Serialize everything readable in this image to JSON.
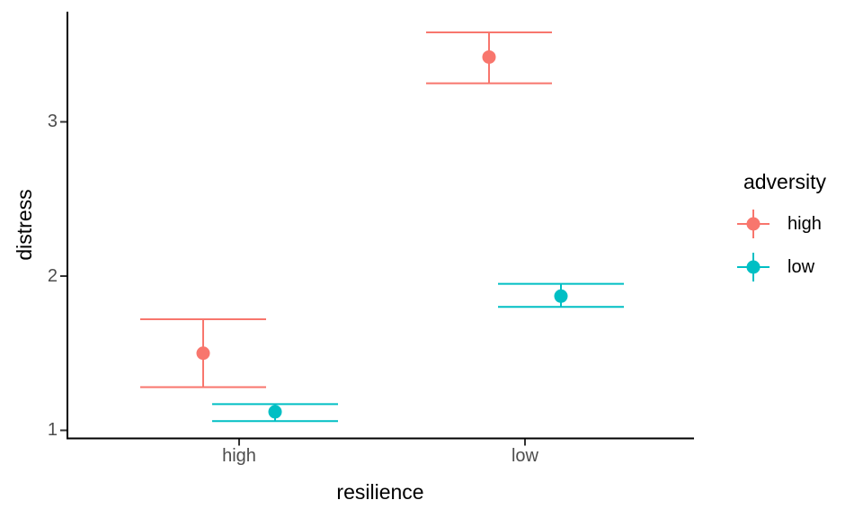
{
  "page": {
    "background": "#ffffff"
  },
  "chart_data": {
    "type": "scatter",
    "variant": "group-means-with-error-bars-dodged",
    "title": "",
    "xlabel": "resilience",
    "ylabel": "distress",
    "x_categories": [
      "high",
      "low"
    ],
    "y_ticks": [
      1,
      2,
      3
    ],
    "y_panel_range": [
      0.94,
      3.71
    ],
    "grid": false,
    "theme": "classic",
    "legend": {
      "title": "adversity",
      "position": "right",
      "entries": [
        {
          "label": "high",
          "color": "#F8766D"
        },
        {
          "label": "low",
          "color": "#00BFC4"
        }
      ]
    },
    "series": [
      {
        "name": "high",
        "color": "#F8766D",
        "points": [
          {
            "x": "high",
            "mean": 1.5,
            "lower": 1.28,
            "upper": 1.72
          },
          {
            "x": "low",
            "mean": 3.42,
            "lower": 3.25,
            "upper": 3.58
          }
        ]
      },
      {
        "name": "low",
        "color": "#00BFC4",
        "points": [
          {
            "x": "high",
            "mean": 1.12,
            "lower": 1.06,
            "upper": 1.17
          },
          {
            "x": "low",
            "mean": 1.87,
            "lower": 1.8,
            "upper": 1.95
          }
        ]
      }
    ],
    "style": {
      "axis_color": "#000000",
      "tick_mark_color": "#333333",
      "tick_label_color": "#4d4d4d",
      "axis_title_color": "#000000",
      "legend_text_color": "#000000"
    }
  }
}
